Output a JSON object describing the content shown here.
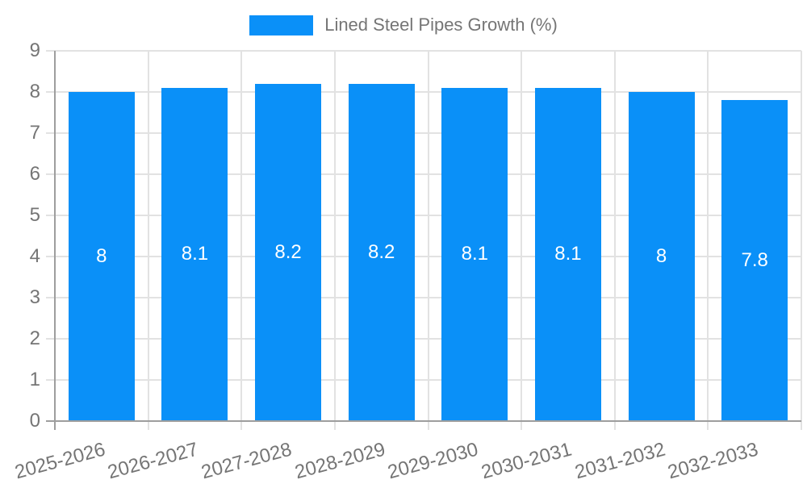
{
  "chart_data": {
    "type": "bar",
    "title": "Lined Steel Pipes Growth (%)",
    "categories": [
      "2025-2026",
      "2026-2027",
      "2027-2028",
      "2028-2029",
      "2029-2030",
      "2030-2031",
      "2031-2032",
      "2032-2033"
    ],
    "values": [
      8,
      8.1,
      8.2,
      8.2,
      8.1,
      8.1,
      8,
      7.8
    ],
    "value_labels": [
      "8",
      "8.1",
      "8.2",
      "8.2",
      "8.1",
      "8.1",
      "8",
      "7.8"
    ],
    "xlabel": "",
    "ylabel": "",
    "ylim": [
      0,
      9
    ],
    "ytick_labels": [
      "0",
      "1",
      "2",
      "3",
      "4",
      "5",
      "6",
      "7",
      "8",
      "9"
    ],
    "grid": true,
    "legend_position": "top-center",
    "bar_label_position": "middle"
  },
  "legend": {
    "label": "Lined Steel Pipes Growth (%)",
    "swatch_color": "#0A90F8"
  },
  "colors": {
    "bar": "#0A90F8",
    "bar_label": "#ffffff",
    "gridline": "#e2e2e2",
    "axis_line": "#9e9e9e",
    "tick_text": "#757575",
    "background": "#ffffff"
  }
}
